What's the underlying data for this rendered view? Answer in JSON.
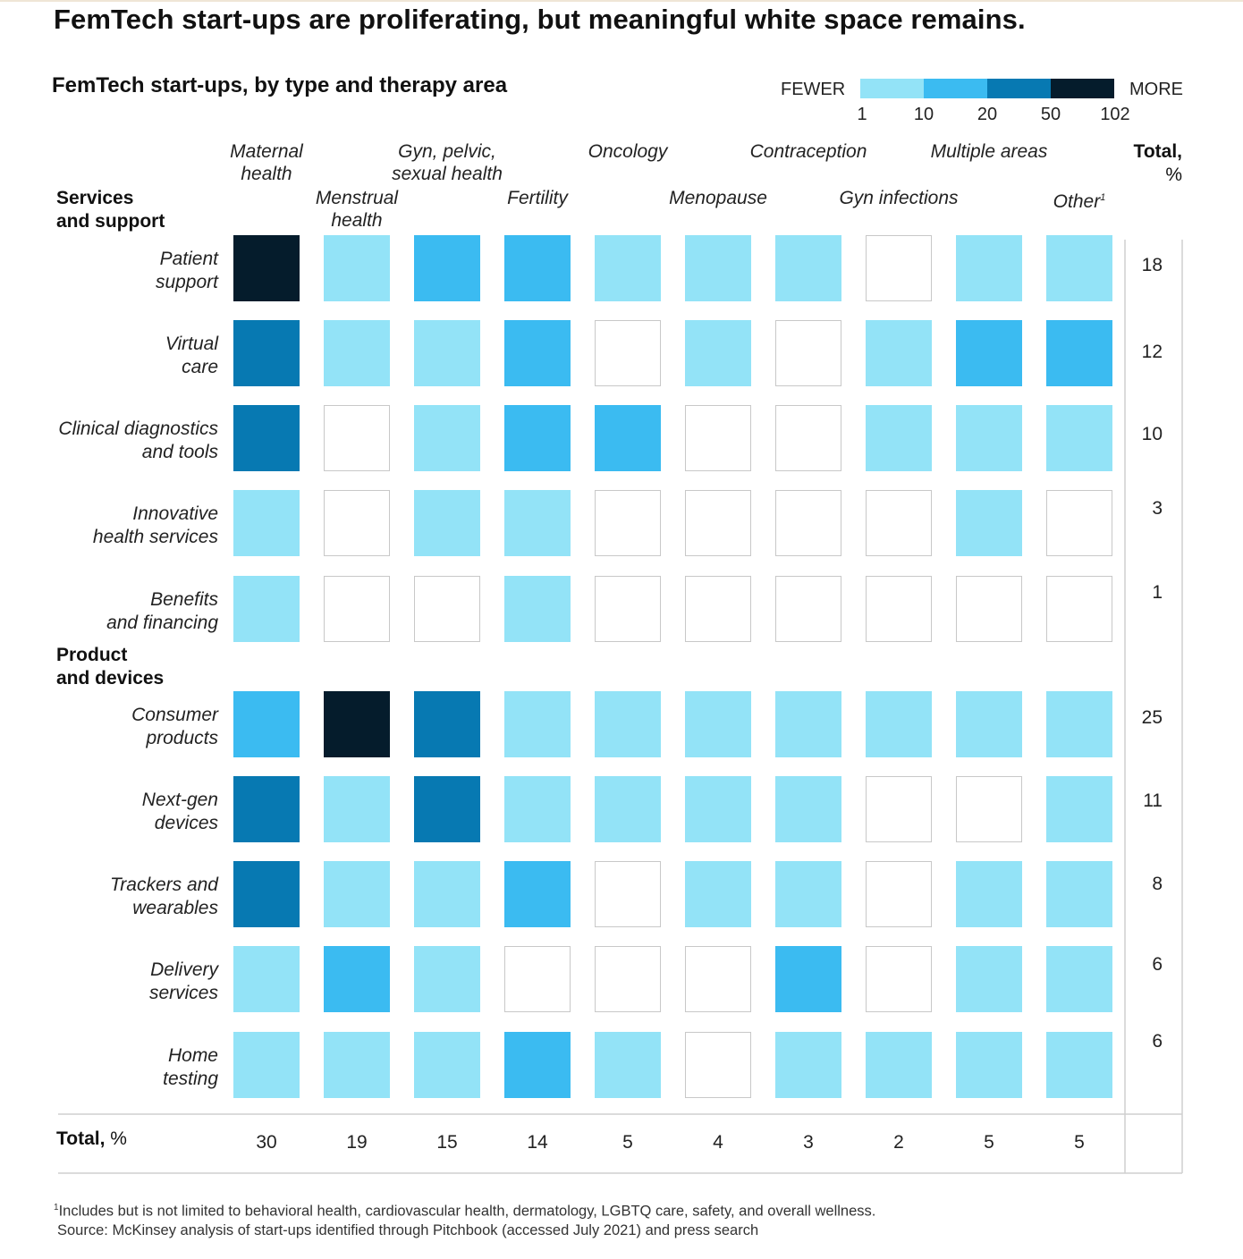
{
  "title": "FemTech start-ups are proliferating, but meaningful white space remains.",
  "subtitle": "FemTech start-ups, by type and therapy area",
  "legend": {
    "fewer": "FEWER",
    "more": "MORE",
    "ticks": [
      "1",
      "10",
      "20",
      "50",
      "102"
    ],
    "colors": [
      "#93e3f7",
      "#3bbbf1",
      "#0779b2",
      "#051c2c"
    ]
  },
  "columns": [
    {
      "label": "Maternal health",
      "lines": [
        "Maternal",
        "health"
      ]
    },
    {
      "label": "Menstrual health",
      "lines": [
        "Menstrual",
        "health"
      ]
    },
    {
      "label": "Gyn, pelvic, sexual health",
      "lines": [
        "Gyn, pelvic,",
        "sexual health"
      ]
    },
    {
      "label": "Fertility",
      "lines": [
        "Fertility"
      ]
    },
    {
      "label": "Oncology",
      "lines": [
        "Oncology"
      ]
    },
    {
      "label": "Menopause",
      "lines": [
        "Menopause"
      ]
    },
    {
      "label": "Contraception",
      "lines": [
        "Contraception"
      ]
    },
    {
      "label": "Gyn infections",
      "lines": [
        "Gyn infections"
      ]
    },
    {
      "label": "Multiple areas",
      "lines": [
        "Multiple areas"
      ]
    },
    {
      "label": "Other",
      "lines": [
        "Other"
      ],
      "footnote": "1"
    }
  ],
  "total_header": {
    "label": "Total,",
    "unit": "%"
  },
  "sections": [
    {
      "label": "Services and support",
      "lines": [
        "Services",
        "and support"
      ]
    },
    {
      "label": "Product and devices",
      "lines": [
        "Product",
        "and devices"
      ]
    }
  ],
  "rows": [
    {
      "label": "Patient support",
      "lines": [
        "Patient",
        "support"
      ],
      "total": "18"
    },
    {
      "label": "Virtual care",
      "lines": [
        "Virtual",
        "care"
      ],
      "total": "12"
    },
    {
      "label": "Clinical diagnostics and tools",
      "lines": [
        "Clinical diagnostics",
        "and tools"
      ],
      "total": "10"
    },
    {
      "label": "Innovative health services",
      "lines": [
        "Innovative",
        "health services"
      ],
      "total": "3"
    },
    {
      "label": "Benefits and financing",
      "lines": [
        "Benefits",
        "and financing"
      ],
      "total": "1"
    },
    {
      "label": "Consumer products",
      "lines": [
        "Consumer",
        "products"
      ],
      "total": "25"
    },
    {
      "label": "Next-gen devices",
      "lines": [
        "Next-gen",
        "devices"
      ],
      "total": "11"
    },
    {
      "label": "Trackers and wearables",
      "lines": [
        "Trackers and",
        "wearables"
      ],
      "total": "8"
    },
    {
      "label": "Delivery services",
      "lines": [
        "Delivery",
        "services"
      ],
      "total": "6"
    },
    {
      "label": "Home testing",
      "lines": [
        "Home",
        "testing"
      ],
      "total": "6"
    }
  ],
  "totals_row": {
    "label": "Total,",
    "unit": "%",
    "values": [
      "30",
      "19",
      "15",
      "14",
      "5",
      "4",
      "3",
      "2",
      "5",
      "5"
    ]
  },
  "footnotes": {
    "note1": "Includes but is not limited to behavioral health, cardiovascular health, dermatology, LGBTQ care, safety, and overall wellness.",
    "note1_marker": "1",
    "source": "Source: McKinsey analysis of start-ups identified through Pitchbook (accessed July 2021) and press search"
  },
  "chart_data": {
    "type": "heatmap",
    "title": "FemTech start-ups, by type and therapy area",
    "x_categories": [
      "Maternal health",
      "Menstrual health",
      "Gyn, pelvic, sexual health",
      "Fertility",
      "Oncology",
      "Menopause",
      "Contraception",
      "Gyn infections",
      "Multiple areas",
      "Other"
    ],
    "y_categories": [
      "Patient support",
      "Virtual care",
      "Clinical diagnostics and tools",
      "Innovative health services",
      "Benefits and financing",
      "Consumer products",
      "Next-gen devices",
      "Trackers and wearables",
      "Delivery services",
      "Home testing"
    ],
    "y_groups": [
      {
        "name": "Services and support",
        "rows": [
          "Patient support",
          "Virtual care",
          "Clinical diagnostics and tools",
          "Innovative health services",
          "Benefits and financing"
        ]
      },
      {
        "name": "Product and devices",
        "rows": [
          "Consumer products",
          "Next-gen devices",
          "Trackers and wearables",
          "Delivery services",
          "Home testing"
        ]
      }
    ],
    "bins": [
      {
        "range": "0",
        "color": "#ffffff"
      },
      {
        "range": "1-10",
        "color": "#93e3f7"
      },
      {
        "range": "10-20",
        "color": "#3bbbf1"
      },
      {
        "range": "20-50",
        "color": "#0779b2"
      },
      {
        "range": "50-102",
        "color": "#051c2c"
      }
    ],
    "levels_legend": "0 = none, 1 = 1-10, 2 = 10-20, 3 = 20-50, 4 = 50-102 start-ups",
    "levels": [
      [
        4,
        1,
        2,
        2,
        1,
        1,
        1,
        0,
        1,
        1
      ],
      [
        3,
        1,
        1,
        2,
        0,
        1,
        0,
        1,
        2,
        2
      ],
      [
        3,
        0,
        1,
        2,
        2,
        0,
        0,
        1,
        1,
        1
      ],
      [
        1,
        0,
        1,
        1,
        0,
        0,
        0,
        0,
        1,
        0
      ],
      [
        1,
        0,
        0,
        1,
        0,
        0,
        0,
        0,
        0,
        0
      ],
      [
        2,
        4,
        3,
        1,
        1,
        1,
        1,
        1,
        1,
        1
      ],
      [
        3,
        1,
        3,
        1,
        1,
        1,
        1,
        0,
        0,
        1
      ],
      [
        3,
        1,
        1,
        2,
        0,
        1,
        1,
        0,
        1,
        1
      ],
      [
        1,
        2,
        1,
        0,
        0,
        0,
        2,
        0,
        1,
        1
      ],
      [
        1,
        1,
        1,
        2,
        1,
        0,
        1,
        1,
        1,
        1
      ]
    ],
    "row_totals_pct": [
      18,
      12,
      10,
      3,
      1,
      25,
      11,
      8,
      6,
      6
    ],
    "column_totals_pct": [
      30,
      19,
      15,
      14,
      5,
      4,
      3,
      2,
      5,
      5
    ]
  }
}
